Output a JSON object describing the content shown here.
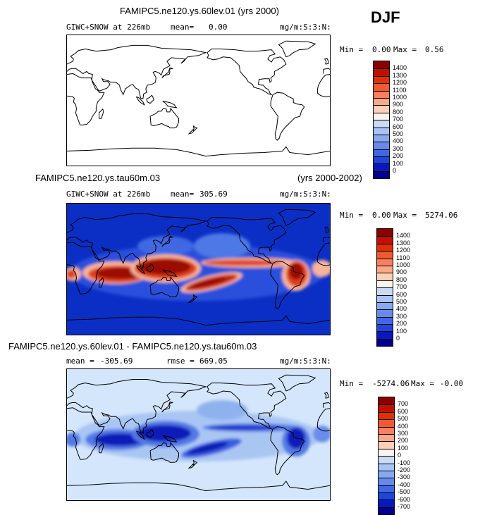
{
  "season": "DJF",
  "chart_data": [
    {
      "type": "heatmap",
      "title": "FAMIPC5.ne120.ys.60lev.01 (yrs 2000)",
      "subtitle": "GIWC+SNOW at 226mb",
      "mean_label": "mean=",
      "mean": "0.00",
      "units": "mg/m:S:3:N:",
      "min_label": "Min =",
      "min": "0.00",
      "max_label": "Max =",
      "max": "0.56",
      "field": "near-zero everywhere",
      "colorbar": {
        "levels": [
          "1400",
          "1300",
          "1200",
          "1100",
          "1000",
          "900",
          "800",
          "700",
          "600",
          "500",
          "400",
          "300",
          "200",
          "100",
          "0"
        ],
        "colors": [
          "#8b0000",
          "#c01000",
          "#e03000",
          "#f05a30",
          "#f88060",
          "#fba888",
          "#fdd0b8",
          "#fbf4ec",
          "#c8dcf8",
          "#a8c4f4",
          "#88a8ef",
          "#6888ea",
          "#4068e6",
          "#1e46dc",
          "#0818c0",
          "#00008c"
        ]
      }
    },
    {
      "type": "heatmap",
      "title": "FAMIPC5.ne120.ys.tau60m.03",
      "title_right": "(yrs 2000-2002)",
      "subtitle": "GIWC+SNOW at 226mb",
      "mean_label": "mean=",
      "mean": "305.69",
      "units": "mg/m:S:3:N:",
      "min_label": "Min =",
      "min": "0.00",
      "max_label": "Max =",
      "max": "5274.06",
      "field": "high values along tropical convection (Indo-Pacific, Amazon, Africa)",
      "colorbar": {
        "levels": [
          "1400",
          "1300",
          "1200",
          "1100",
          "1000",
          "900",
          "800",
          "700",
          "600",
          "500",
          "400",
          "300",
          "200",
          "100",
          "0"
        ],
        "colors": [
          "#8b0000",
          "#c01000",
          "#e03000",
          "#f05a30",
          "#f88060",
          "#fba888",
          "#fdd0b8",
          "#fbf4ec",
          "#c8dcf8",
          "#a8c4f4",
          "#88a8ef",
          "#6888ea",
          "#4068e6",
          "#1e46dc",
          "#0818c0",
          "#00008c"
        ]
      }
    },
    {
      "type": "heatmap",
      "title": "FAMIPC5.ne120.ys.60lev.01 - FAMIPC5.ne120.ys.tau60m.03",
      "mean_label": "mean =",
      "mean": "-305.69",
      "rmse_label": "rmse =",
      "rmse": "669.05",
      "units": "mg/m:S:3:N:",
      "min_label": "Min =",
      "min": "-5274.06",
      "max_label": "Max =",
      "max": "-0.00",
      "field": "negative differences along tropical convection",
      "colorbar": {
        "levels": [
          "700",
          "600",
          "500",
          "400",
          "300",
          "200",
          "100",
          "0",
          "-100",
          "-200",
          "-300",
          "-400",
          "-500",
          "-600",
          "-700"
        ],
        "colors": [
          "#8b0000",
          "#c01000",
          "#e03000",
          "#f05a30",
          "#f88060",
          "#fba888",
          "#fdd0b8",
          "#fbf4ec",
          "#c8dcf8",
          "#a8c4f4",
          "#88a8ef",
          "#6888ea",
          "#4068e6",
          "#1e46dc",
          "#0818c0",
          "#00008c"
        ]
      }
    }
  ]
}
